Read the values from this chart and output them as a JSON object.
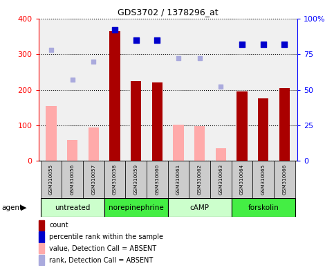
{
  "title": "GDS3702 / 1378296_at",
  "samples": [
    "GSM310055",
    "GSM310056",
    "GSM310057",
    "GSM310058",
    "GSM310059",
    "GSM310060",
    "GSM310061",
    "GSM310062",
    "GSM310063",
    "GSM310064",
    "GSM310065",
    "GSM310066"
  ],
  "count": [
    0,
    0,
    0,
    365,
    225,
    220,
    0,
    0,
    0,
    195,
    175,
    205
  ],
  "count_present": [
    false,
    false,
    false,
    true,
    true,
    true,
    false,
    false,
    false,
    true,
    true,
    true
  ],
  "value_absent": [
    155,
    60,
    95,
    null,
    null,
    null,
    102,
    98,
    35,
    null,
    null,
    null
  ],
  "percentile_rank": [
    78,
    57,
    70,
    92,
    85,
    85,
    72,
    72,
    52,
    82,
    82,
    82
  ],
  "rank_absent": [
    78,
    57,
    70,
    null,
    null,
    null,
    72,
    72,
    52,
    null,
    null,
    null
  ],
  "groups": [
    {
      "label": "untreated",
      "start": 0,
      "end": 3,
      "color": "#ccffcc"
    },
    {
      "label": "norepinephrine",
      "start": 3,
      "end": 6,
      "color": "#44ee44"
    },
    {
      "label": "cAMP",
      "start": 6,
      "end": 9,
      "color": "#ccffcc"
    },
    {
      "label": "forskolin",
      "start": 9,
      "end": 12,
      "color": "#44ee44"
    }
  ],
  "left_ylim": [
    0,
    400
  ],
  "right_ylim": [
    0,
    100
  ],
  "left_yticks": [
    0,
    100,
    200,
    300,
    400
  ],
  "right_yticks": [
    0,
    25,
    50,
    75,
    100
  ],
  "right_yticklabels": [
    "0",
    "25",
    "50",
    "75",
    "100%"
  ],
  "count_color": "#aa0000",
  "value_absent_color": "#ffaaaa",
  "percentile_color": "#0000cc",
  "rank_absent_color": "#aaaadd",
  "plot_bg_color": "#f0f0f0",
  "sample_label_bg": "#cccccc",
  "legend_items": [
    {
      "color": "#aa0000",
      "label": "count"
    },
    {
      "color": "#0000cc",
      "label": "percentile rank within the sample"
    },
    {
      "color": "#ffaaaa",
      "label": "value, Detection Call = ABSENT"
    },
    {
      "color": "#aaaadd",
      "label": "rank, Detection Call = ABSENT"
    }
  ]
}
